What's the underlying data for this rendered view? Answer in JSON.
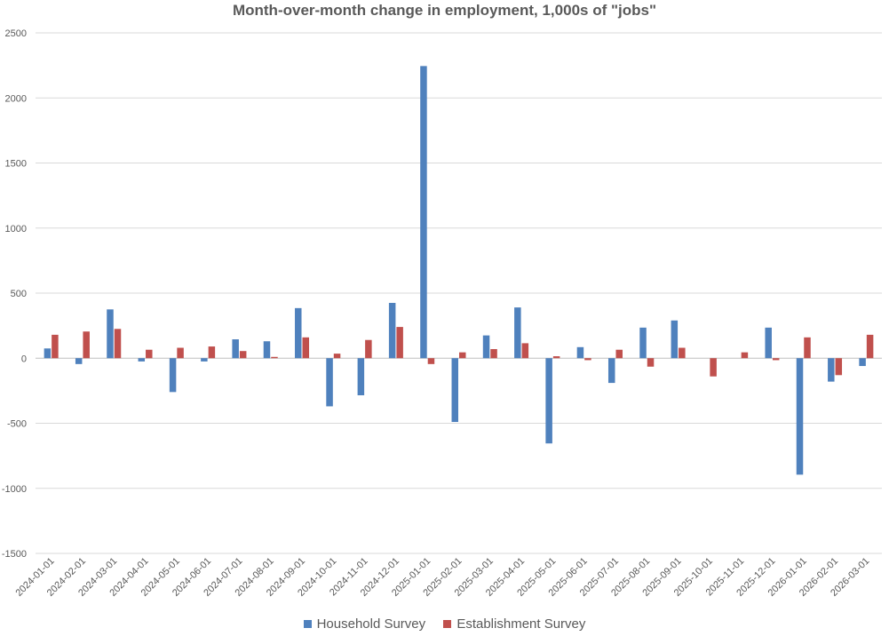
{
  "chart_data": {
    "type": "bar",
    "title": "Month-over-month change in employment, 1,000s of \"jobs\"",
    "xlabel": "",
    "ylabel": "",
    "ylim": [
      -1500,
      2500
    ],
    "yticks": [
      2500,
      2000,
      1500,
      1000,
      500,
      0,
      -500,
      -1000,
      -1500
    ],
    "grid": true,
    "legend_position": "bottom",
    "categories": [
      "2024-01-01",
      "2024-02-01",
      "2024-03-01",
      "2024-04-01",
      "2024-05-01",
      "2024-06-01",
      "2024-07-01",
      "2024-08-01",
      "2024-09-01",
      "2024-10-01",
      "2024-11-01",
      "2024-12-01",
      "2025-01-01",
      "2025-02-01",
      "2025-03-01",
      "2025-04-01",
      "2025-05-01",
      "2025-06-01",
      "2025-07-01",
      "2025-08-01",
      "2025-09-01",
      "2025-10-01",
      "2025-11-01",
      "2025-12-01",
      "2026-01-01",
      "2026-02-01",
      "2026-03-01"
    ],
    "series": [
      {
        "name": "Household Survey",
        "color": "#4f81bd",
        "values": [
          75,
          -45,
          375,
          -25,
          -260,
          -25,
          145,
          130,
          385,
          -370,
          -285,
          425,
          2245,
          -490,
          175,
          390,
          -655,
          85,
          -190,
          235,
          290,
          null,
          null,
          235,
          -895,
          -180,
          -60
        ]
      },
      {
        "name": "Establishment Survey",
        "color": "#c0504d",
        "values": [
          180,
          205,
          225,
          65,
          80,
          90,
          55,
          10,
          160,
          35,
          140,
          240,
          -45,
          45,
          70,
          115,
          15,
          -15,
          65,
          -65,
          80,
          -140,
          45,
          -15,
          160,
          -130,
          180
        ]
      }
    ]
  }
}
